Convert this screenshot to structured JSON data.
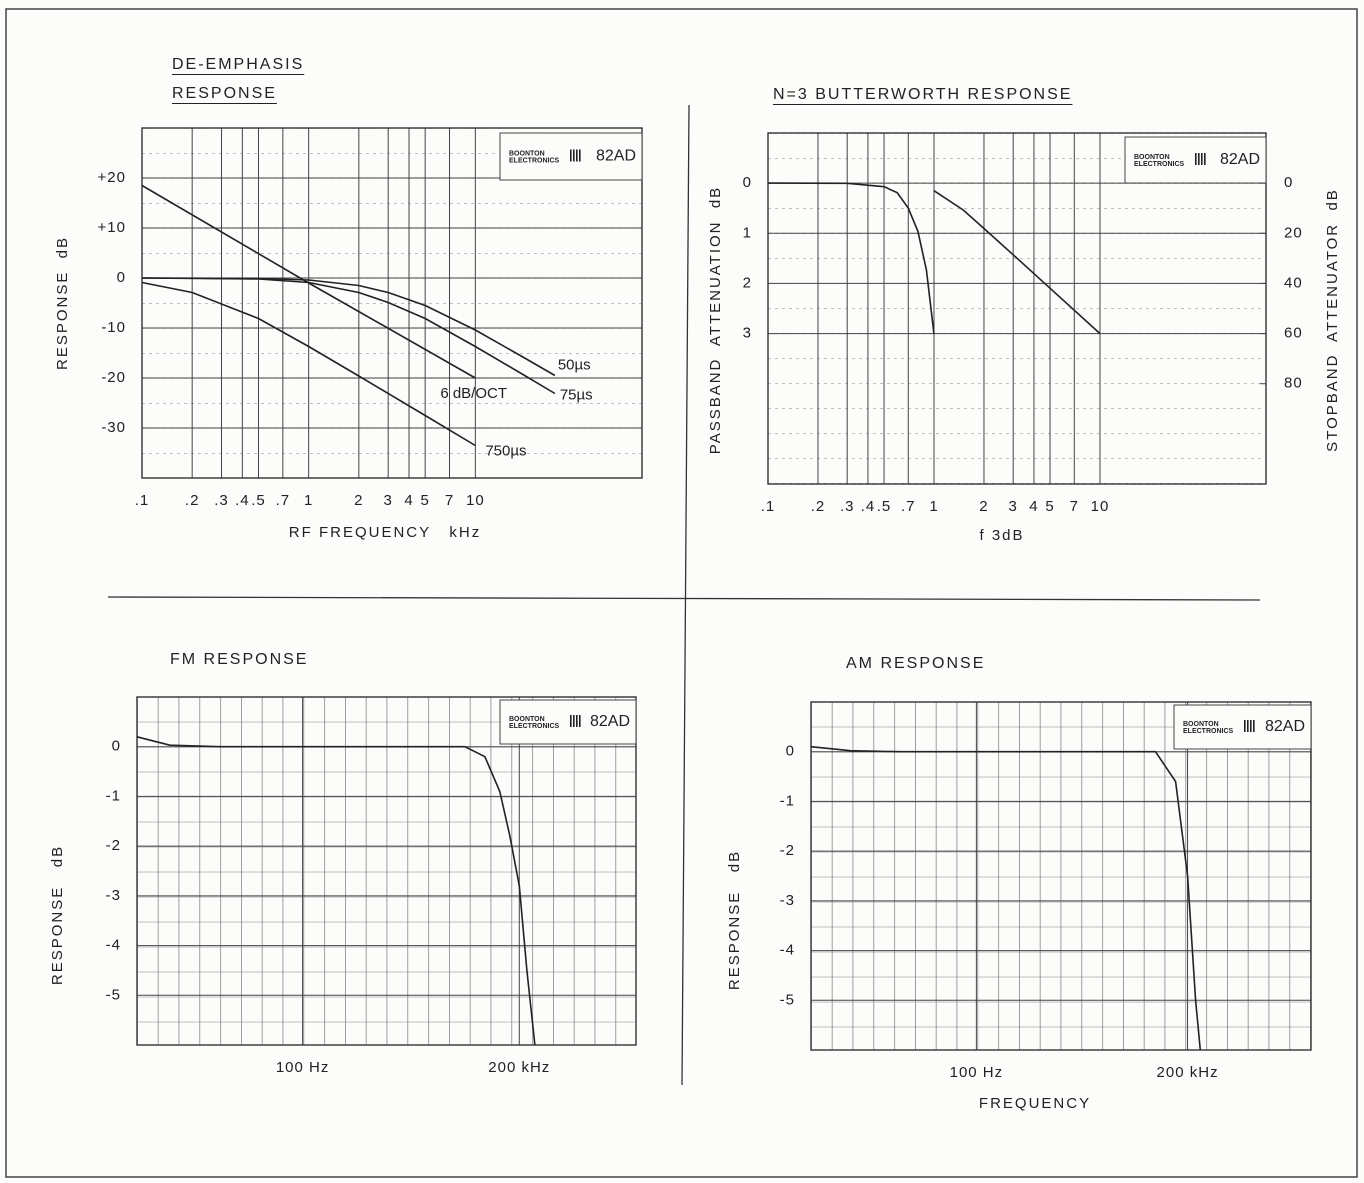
{
  "chart_data": [
    {
      "type": "line",
      "title": "DE-EMPHASIS RESPONSE",
      "xlabel": "RF FREQUENCY   kHz",
      "ylabel": "RESPONSE  dB",
      "xscale": "log",
      "xlim": [
        0.1,
        100
      ],
      "xticks": [
        {
          "value": 0.1,
          "label": ".1"
        },
        {
          "value": 0.2,
          "label": ".2"
        },
        {
          "value": 0.3,
          "label": ".3"
        },
        {
          "value": 0.4,
          "label": ".4"
        },
        {
          "value": 0.5,
          "label": ".5"
        },
        {
          "value": 0.7,
          "label": ".7"
        },
        1,
        2,
        3,
        4,
        5,
        7,
        10
      ],
      "ylim": [
        -40,
        30
      ],
      "yticks": [
        {
          "value": 20,
          "label": "+20"
        },
        {
          "value": 10,
          "label": "+10"
        },
        0,
        -10,
        -20,
        -30
      ],
      "grid": true,
      "logo_brand": [
        "BOONTON",
        "ELECTRONICS"
      ],
      "logo_model": "82AD",
      "series": [
        {
          "name": "6 dB/OCT",
          "color": "#222",
          "x": [
            0.1,
            1,
            10
          ],
          "values": [
            18.5,
            -1,
            -20
          ]
        },
        {
          "name": "50µs",
          "color": "#222",
          "x": [
            0.1,
            0.5,
            1,
            2,
            3,
            5,
            10,
            20,
            30
          ],
          "values": [
            0,
            -0.1,
            -0.4,
            -1.5,
            -2.9,
            -5.5,
            -10.4,
            -16.1,
            -19.5
          ]
        },
        {
          "name": "75µs",
          "color": "#222",
          "x": [
            0.1,
            0.5,
            1,
            2,
            3,
            5,
            10,
            20,
            30
          ],
          "values": [
            0,
            -0.2,
            -0.9,
            -2.9,
            -4.9,
            -8.1,
            -13.7,
            -19.6,
            -23.1
          ]
        },
        {
          "name": "750µs",
          "color": "#222",
          "x": [
            0.1,
            0.2,
            0.5,
            1,
            2,
            5,
            10
          ],
          "values": [
            -0.9,
            -2.9,
            -8.1,
            -13.7,
            -19.6,
            -27.5,
            -33.5
          ]
        }
      ]
    },
    {
      "type": "line",
      "title": "N=3 BUTTERWORTH RESPONSE",
      "xlabel": "f 3dB",
      "ylabel": "PASSBAND  ATTENUATION  dB",
      "y2label": "STOPBAND  ATTENUATOR  dB",
      "xscale": "log",
      "xlim": [
        0.1,
        100
      ],
      "xticks": [
        {
          "value": 0.1,
          "label": ".1"
        },
        {
          "value": 0.2,
          "label": ".2"
        },
        {
          "value": 0.3,
          "label": ".3"
        },
        {
          "value": 0.4,
          "label": ".4"
        },
        {
          "value": 0.5,
          "label": ".5"
        },
        {
          "value": 0.7,
          "label": ".7"
        },
        1,
        2,
        3,
        4,
        5,
        7,
        10
      ],
      "ylim": [
        6,
        -1
      ],
      "yticks": [
        0,
        1,
        2,
        3
      ],
      "y2lim": [
        120,
        -20
      ],
      "y2ticks": [
        0,
        20,
        40,
        60,
        80
      ],
      "grid": true,
      "logo_brand": [
        "BOONTON",
        "ELECTRONICS"
      ],
      "logo_model": "82AD",
      "series": [
        {
          "color": "#222",
          "x": [
            0.1,
            0.3,
            0.5,
            0.6,
            0.7,
            0.8,
            0.9,
            1
          ],
          "values": [
            0,
            0.003,
            0.07,
            0.19,
            0.5,
            0.96,
            1.73,
            3.01
          ]
        },
        {
          "color": "#222",
          "axis": "y2",
          "x": [
            1,
            1.5,
            2,
            3,
            5,
            10
          ],
          "values": [
            3,
            10.7,
            18.1,
            28.6,
            41.9,
            60
          ]
        }
      ]
    },
    {
      "type": "line",
      "title": "FM RESPONSE",
      "ylabel": "RESPONSE   dB",
      "xscale": "log",
      "xlim": [
        0.3,
        12000000
      ],
      "xticks": [
        {
          "value": 100,
          "label": "100 Hz"
        },
        {
          "value": 200000,
          "label": "200 kHz"
        }
      ],
      "ylim": [
        -6,
        1
      ],
      "yticks": [
        0,
        -1,
        -2,
        -3,
        -4,
        -5
      ],
      "grid": true,
      "logo_brand": [
        "BOONTON",
        "ELECTRONICS"
      ],
      "logo_model": "82AD",
      "series": [
        {
          "color": "#222",
          "x": [
            0.3,
            0.95,
            5.5,
            29700,
            59800,
            101000,
            144000,
            200000,
            261000,
            346000
          ],
          "values": [
            0.2,
            0.03,
            0,
            0,
            -0.2,
            -0.9,
            -1.8,
            -2.8,
            -4.5,
            -6
          ]
        }
      ]
    },
    {
      "type": "line",
      "title": "AM RESPONSE",
      "xlabel": "FREQUENCY",
      "ylabel": "RESPONSE   dB",
      "xscale": "log",
      "xlim": [
        0.26,
        17000000
      ],
      "xticks": [
        {
          "value": 100,
          "label": "100 Hz"
        },
        {
          "value": 200000,
          "label": "200 kHz"
        }
      ],
      "ylim": [
        -6,
        1
      ],
      "yticks": [
        0,
        -1,
        -2,
        -3,
        -4,
        -5
      ],
      "grid": true,
      "logo_brand": [
        "BOONTON",
        "ELECTRONICS"
      ],
      "logo_model": "82AD",
      "series": [
        {
          "color": "#222",
          "x": [
            0.26,
            1.07,
            6.5,
            63000,
            130000,
            200000,
            267000,
            316000
          ],
          "values": [
            0.1,
            0.02,
            0,
            0,
            -0.6,
            -2.5,
            -5,
            -6
          ]
        }
      ]
    }
  ]
}
